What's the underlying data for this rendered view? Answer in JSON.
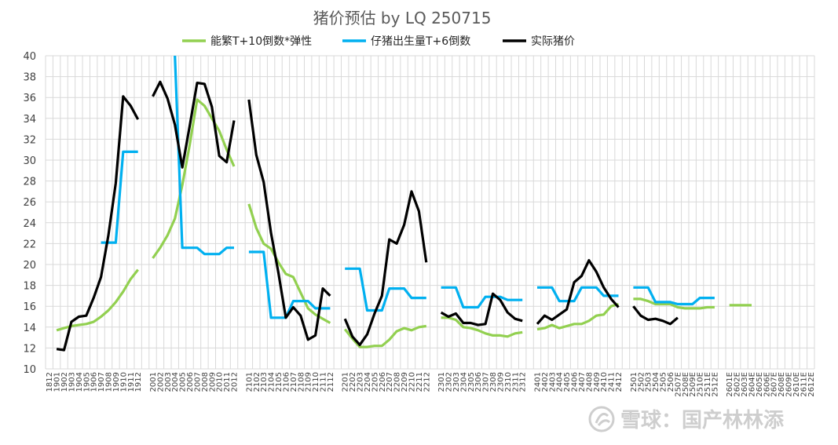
{
  "chart_data": {
    "type": "line",
    "title": "猪价预估  by LQ 250715",
    "ylim": [
      10,
      40
    ],
    "yticks": [
      10,
      12,
      14,
      16,
      18,
      20,
      22,
      24,
      26,
      28,
      30,
      32,
      34,
      36,
      38,
      40
    ],
    "grid": true,
    "legend_position": "top",
    "x": [
      "1812",
      "1901",
      "1902",
      "1903",
      "1904",
      "1905",
      "1906",
      "1907",
      "1908",
      "1909",
      "1910",
      "1911",
      "1912",
      "",
      "2001",
      "2002",
      "2003",
      "2004",
      "2005",
      "2006",
      "2007",
      "2008",
      "2009",
      "2010",
      "2011",
      "2012",
      "",
      "2101",
      "2102",
      "2103",
      "2104",
      "2105",
      "2106",
      "2107",
      "2108",
      "2109",
      "2110",
      "2111",
      "2112",
      "",
      "2201",
      "2202",
      "2203",
      "2204",
      "2205",
      "2206",
      "2207",
      "2208",
      "2209",
      "2210",
      "2211",
      "2212",
      "",
      "2301",
      "2302",
      "2303",
      "2304",
      "2305",
      "2306",
      "2307",
      "2308",
      "2309",
      "2310",
      "2311",
      "2312",
      "",
      "2401",
      "2402",
      "2403",
      "2404",
      "2405",
      "2406",
      "2407",
      "2408",
      "2409",
      "2410",
      "2411",
      "2412",
      "",
      "2501",
      "2502",
      "2503",
      "2504",
      "2505",
      "2506",
      "2507E",
      "2508E",
      "2509E",
      "2510E",
      "2511E",
      "2512E",
      "",
      "2601E",
      "2602E",
      "2603E",
      "2604E",
      "2605E",
      "2606E",
      "2607E",
      "2608E",
      "2609E",
      "2610E",
      "2611E",
      "2612E"
    ],
    "series": [
      {
        "name": "能繁T+10倒数*弹性",
        "color": "#92d050",
        "values": [
          null,
          13.7,
          13.9,
          14.1,
          14.2,
          14.3,
          14.5,
          15.0,
          15.6,
          16.4,
          17.4,
          18.6,
          19.5,
          null,
          20.6,
          21.6,
          22.8,
          24.4,
          27.6,
          31.5,
          35.8,
          35.2,
          34.0,
          32.8,
          31.0,
          29.4,
          null,
          25.8,
          23.5,
          22.0,
          21.5,
          20.2,
          19.1,
          18.8,
          17.3,
          15.8,
          15.2,
          14.8,
          14.4,
          null,
          13.8,
          12.9,
          12.1,
          12.1,
          12.2,
          12.2,
          12.8,
          13.6,
          13.9,
          13.7,
          14.0,
          14.1,
          null,
          14.9,
          14.9,
          14.7,
          14.0,
          13.9,
          13.7,
          13.4,
          13.2,
          13.2,
          13.1,
          13.4,
          13.5,
          null,
          13.8,
          13.9,
          14.2,
          13.9,
          14.1,
          14.3,
          14.3,
          14.6,
          15.1,
          15.2,
          16.0,
          16.2,
          null,
          16.7,
          16.7,
          16.5,
          16.2,
          16.2,
          16.2,
          15.9,
          15.8,
          15.8,
          15.8,
          15.9,
          15.9,
          null,
          16.1,
          16.1,
          16.1,
          16.1,
          null,
          null,
          null,
          null,
          null,
          null,
          null,
          null
        ]
      },
      {
        "name": "仔猪出生量T+6倒数",
        "color": "#00b0f0",
        "values": [
          null,
          null,
          null,
          null,
          null,
          null,
          null,
          22.1,
          22.1,
          22.1,
          30.8,
          30.8,
          30.8,
          null,
          null,
          null,
          null,
          40.0,
          21.6,
          21.6,
          21.6,
          21.0,
          21.0,
          21.0,
          21.6,
          21.6,
          null,
          21.2,
          21.2,
          21.2,
          14.9,
          14.9,
          14.9,
          16.5,
          16.5,
          16.5,
          15.8,
          15.8,
          15.8,
          null,
          19.6,
          19.6,
          19.6,
          15.6,
          15.6,
          15.6,
          17.7,
          17.7,
          17.7,
          16.8,
          16.8,
          16.8,
          null,
          17.8,
          17.8,
          17.8,
          15.9,
          15.9,
          15.9,
          16.9,
          16.9,
          16.9,
          16.6,
          16.6,
          16.6,
          null,
          17.8,
          17.8,
          17.8,
          16.5,
          16.5,
          16.5,
          17.8,
          17.8,
          17.8,
          17.0,
          17.0,
          17.0,
          null,
          17.8,
          17.8,
          17.8,
          16.4,
          16.4,
          16.4,
          16.2,
          16.2,
          16.2,
          16.8,
          16.8,
          16.8,
          null,
          null,
          null,
          null,
          null,
          null,
          null,
          null,
          null,
          null,
          null,
          null,
          null
        ]
      },
      {
        "name": "实际猪价",
        "color": "#000000",
        "values": [
          null,
          11.9,
          11.8,
          14.5,
          15.0,
          15.1,
          16.8,
          18.8,
          22.8,
          27.8,
          36.1,
          35.2,
          33.9,
          null,
          36.1,
          37.5,
          35.9,
          33.4,
          29.3,
          33.3,
          37.4,
          37.3,
          35.1,
          30.4,
          29.8,
          33.8,
          null,
          35.8,
          30.5,
          27.9,
          23.0,
          19.2,
          14.9,
          15.9,
          15.1,
          12.8,
          13.2,
          17.7,
          17.0,
          null,
          14.8,
          13.1,
          12.3,
          13.3,
          15.3,
          17.0,
          22.4,
          22.0,
          23.8,
          27.0,
          25.1,
          20.2,
          null,
          15.4,
          15.0,
          15.3,
          14.4,
          14.4,
          14.2,
          14.3,
          17.2,
          16.6,
          15.4,
          14.8,
          14.6,
          null,
          14.3,
          15.1,
          14.7,
          15.2,
          15.7,
          18.3,
          18.9,
          20.4,
          19.3,
          17.8,
          16.7,
          15.9,
          null,
          16.0,
          15.1,
          14.7,
          14.8,
          14.6,
          14.3,
          14.9,
          null,
          null,
          null,
          null,
          null,
          null,
          null,
          null,
          null,
          null,
          null,
          null,
          null,
          null,
          null,
          null,
          null,
          null
        ]
      }
    ]
  },
  "watermark": {
    "text": "雪球：国产林林添"
  }
}
